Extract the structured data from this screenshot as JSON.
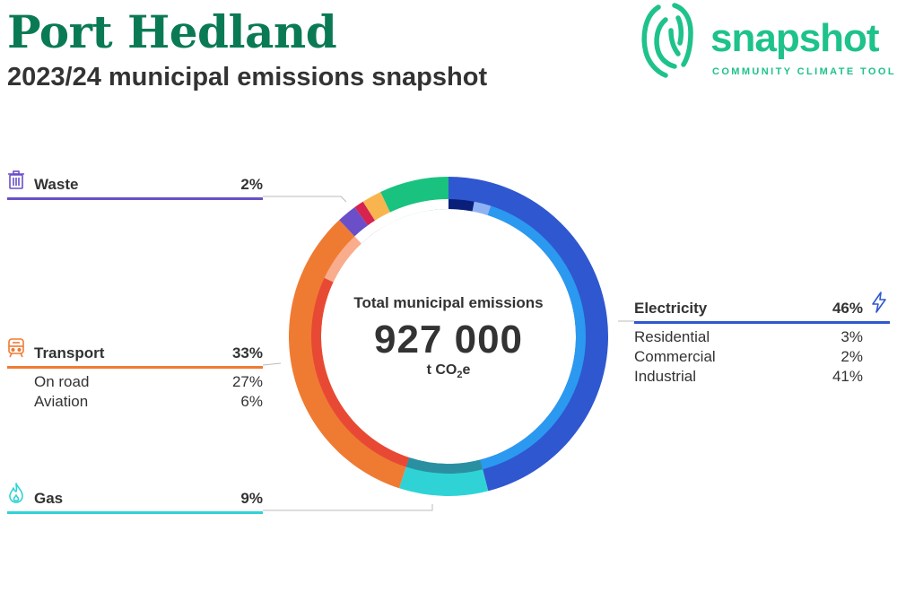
{
  "header": {
    "title": "Port Hedland",
    "subtitle": "2023/24 municipal emissions snapshot"
  },
  "logo": {
    "word": "snapshot",
    "tagline": "COMMUNITY CLIMATE TOOL",
    "color": "#1ec28b"
  },
  "center": {
    "caption": "Total municipal emissions",
    "value": "927 000",
    "unit_prefix": "t CO",
    "unit_sub": "2",
    "unit_suffix": "e"
  },
  "categories": {
    "waste": {
      "name": "Waste",
      "pct": "2%",
      "color": "#6a4fc9",
      "icon": "trash-icon"
    },
    "transport": {
      "name": "Transport",
      "pct": "33%",
      "color": "#ef7b33",
      "icon": "train-icon",
      "subs": [
        {
          "name": "On road",
          "pct": "27%"
        },
        {
          "name": "Aviation",
          "pct": "6%"
        }
      ]
    },
    "gas": {
      "name": "Gas",
      "pct": "9%",
      "color": "#2fd3d6",
      "icon": "flame-icon"
    },
    "electricity": {
      "name": "Electricity",
      "pct": "46%",
      "color": "#2f57cf",
      "icon": "lightning-icon",
      "subs": [
        {
          "name": "Residential",
          "pct": "3%"
        },
        {
          "name": "Commercial",
          "pct": "2%"
        },
        {
          "name": "Industrial",
          "pct": "41%"
        }
      ]
    }
  },
  "chart_data": {
    "type": "pie",
    "title": "Total municipal emissions",
    "total": 927000,
    "unit": "t CO2e",
    "outer_ring": [
      {
        "name": "Electricity",
        "value": 46,
        "color": "#2f57cf"
      },
      {
        "name": "Gas",
        "value": 9,
        "color": "#2fd3d6"
      },
      {
        "name": "Transport",
        "value": 33,
        "color": "#ef7b33"
      },
      {
        "name": "Waste",
        "value": 2,
        "color": "#6a4fc9"
      },
      {
        "name": "",
        "value": 1,
        "color": "#d6234f"
      },
      {
        "name": "",
        "value": 2,
        "color": "#f8b54f"
      },
      {
        "name": "",
        "value": 7,
        "color": "#19c27f"
      }
    ],
    "inner_ring": [
      {
        "name": "Residential",
        "value": 3,
        "color": "#0a1f7a"
      },
      {
        "name": "Commercial",
        "value": 2,
        "color": "#8fb2f4"
      },
      {
        "name": "Industrial",
        "value": 41,
        "color": "#2b99f0"
      },
      {
        "name": "",
        "value": 9,
        "color": "#2b8fa2"
      },
      {
        "name": "On road",
        "value": 27,
        "color": "#e84935"
      },
      {
        "name": "Aviation",
        "value": 6,
        "color": "#f9ad8d"
      },
      {
        "name": "",
        "value": 12,
        "color": "#ffffff"
      }
    ]
  }
}
